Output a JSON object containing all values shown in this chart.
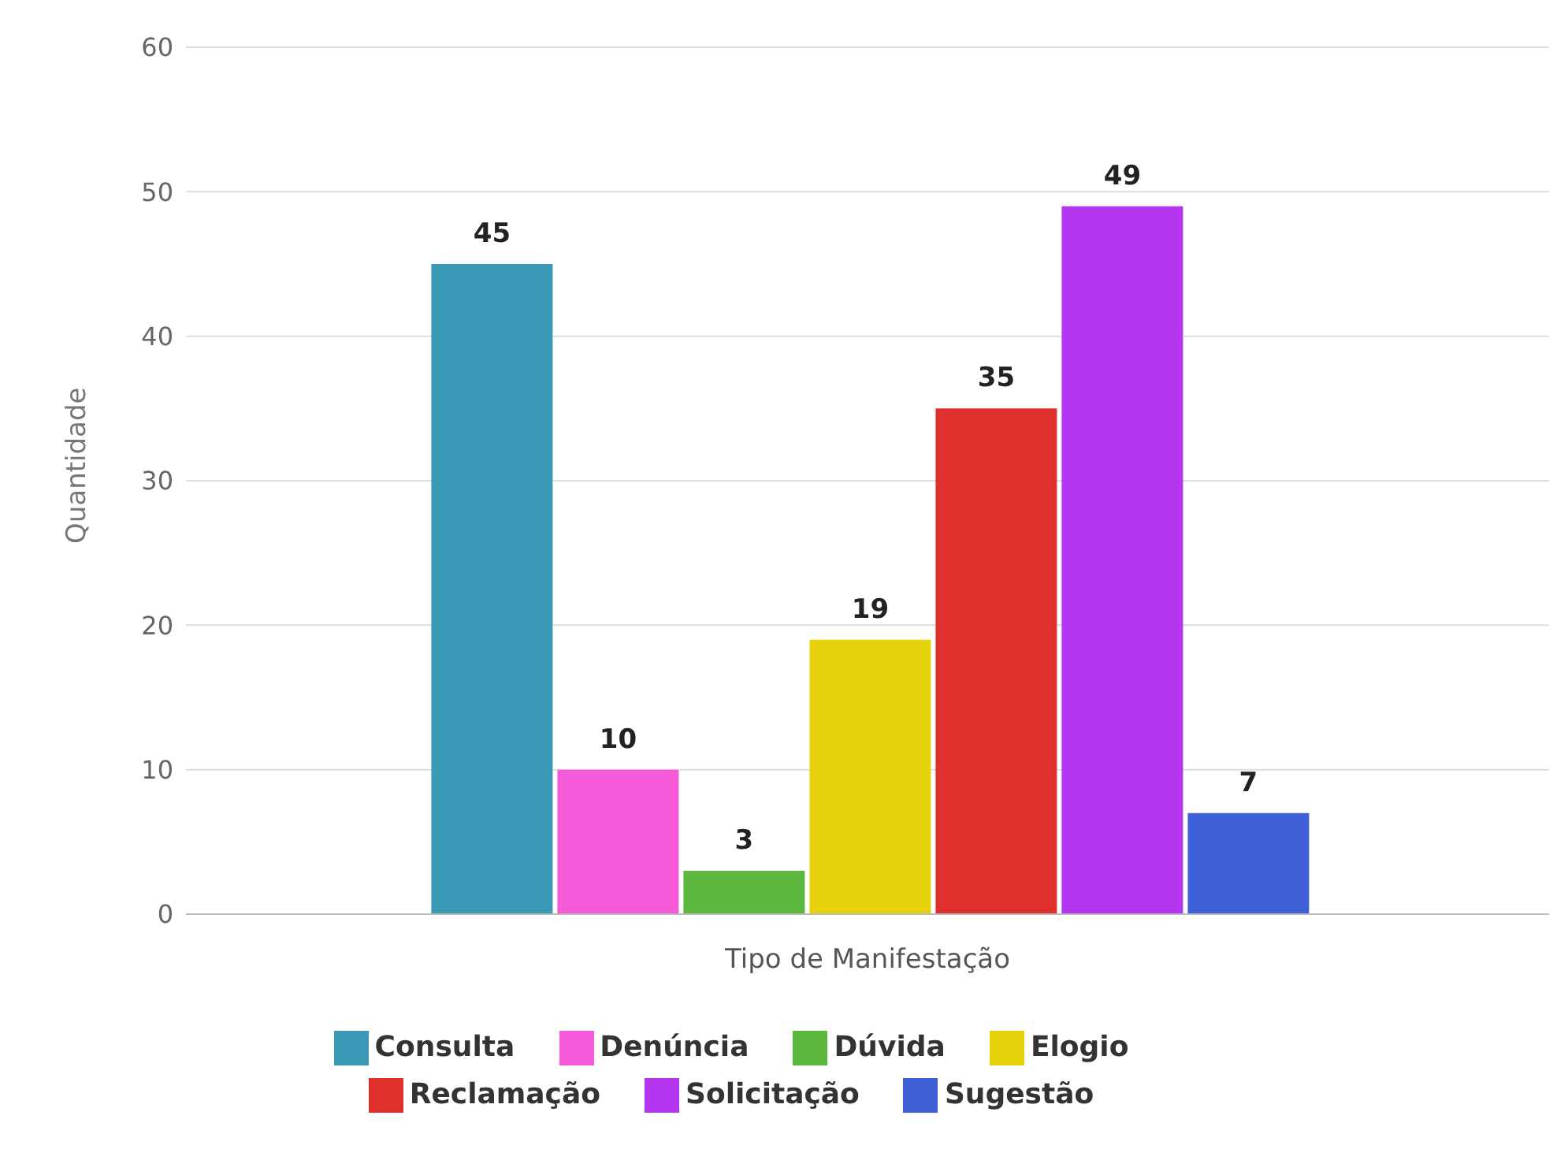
{
  "chart_data": {
    "type": "bar",
    "categories": [
      null
    ],
    "xlabel": "Tipo de Manifestação",
    "ylabel": "Quantidade",
    "series": [
      {
        "name": "Consulta",
        "color": "#3a9ab5",
        "values": [
          45
        ]
      },
      {
        "name": "Denúncia",
        "color": "#f55bd9",
        "values": [
          10
        ]
      },
      {
        "name": "Dúvida",
        "color": "#5cb83c",
        "values": [
          3
        ]
      },
      {
        "name": "Elogio",
        "color": "#e6d20a",
        "values": [
          19
        ]
      },
      {
        "name": "Reclamação",
        "color": "#e0302e",
        "values": [
          35
        ]
      },
      {
        "name": "Solicitação",
        "color": "#b536f0",
        "values": [
          49
        ]
      },
      {
        "name": "Sugestão",
        "color": "#3f5fd6",
        "values": [
          7
        ]
      }
    ],
    "ylim": [
      0,
      60
    ],
    "yticks": [
      0,
      10,
      20,
      30,
      40,
      50,
      60
    ],
    "grid": "y",
    "legend": "bottom",
    "data_labels": true
  }
}
